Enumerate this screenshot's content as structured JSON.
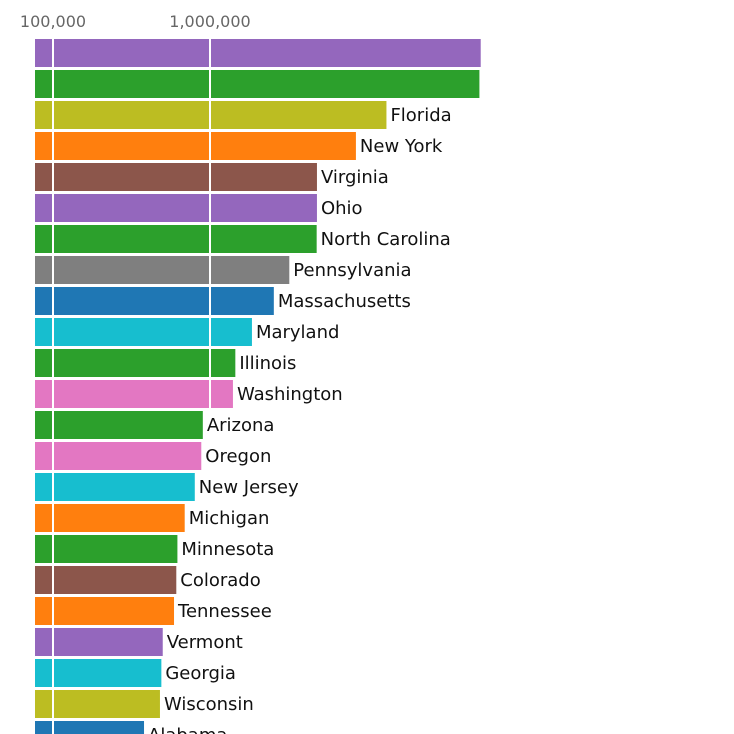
{
  "chart_data": {
    "type": "bar",
    "orientation": "horizontal",
    "x_scale": "log",
    "x_ticks": [
      {
        "value": 100000,
        "label": "100,000"
      },
      {
        "value": 1000000,
        "label": "1,000,000"
      }
    ],
    "grid": true,
    "colors": {
      "purple": "#9467bd",
      "green": "#2ca02c",
      "olive": "#bcbd22",
      "orange": "#ff7f0e",
      "brown": "#8c564b",
      "gray": "#7f7f7f",
      "blue": "#1f77b4",
      "cyan": "#17becf",
      "pink": "#e377c2"
    },
    "bars": [
      {
        "label": "",
        "value": 53000000,
        "color": "#9467bd"
      },
      {
        "label": "",
        "value": 52000000,
        "color": "#2ca02c"
      },
      {
        "label": "Florida",
        "value": 13300000,
        "color": "#bcbd22"
      },
      {
        "label": "New York",
        "value": 8500000,
        "color": "#ff7f0e"
      },
      {
        "label": "Virginia",
        "value": 4800000,
        "color": "#8c564b"
      },
      {
        "label": "Ohio",
        "value": 4800000,
        "color": "#9467bd"
      },
      {
        "label": "North Carolina",
        "value": 4780000,
        "color": "#2ca02c"
      },
      {
        "label": "Pennsylvania",
        "value": 3200000,
        "color": "#7f7f7f"
      },
      {
        "label": "Massachusetts",
        "value": 2550000,
        "color": "#1f77b4"
      },
      {
        "label": "Maryland",
        "value": 1850000,
        "color": "#17becf"
      },
      {
        "label": "Illinois",
        "value": 1450000,
        "color": "#2ca02c"
      },
      {
        "label": "Washington",
        "value": 1400000,
        "color": "#e377c2"
      },
      {
        "label": "Arizona",
        "value": 900000,
        "color": "#2ca02c"
      },
      {
        "label": "Oregon",
        "value": 880000,
        "color": "#e377c2"
      },
      {
        "label": "New Jersey",
        "value": 800000,
        "color": "#17becf"
      },
      {
        "label": "Michigan",
        "value": 690000,
        "color": "#ff7f0e"
      },
      {
        "label": "Minnesota",
        "value": 620000,
        "color": "#2ca02c"
      },
      {
        "label": "Colorado",
        "value": 610000,
        "color": "#8c564b"
      },
      {
        "label": "Tennessee",
        "value": 590000,
        "color": "#ff7f0e"
      },
      {
        "label": "Vermont",
        "value": 500000,
        "color": "#9467bd"
      },
      {
        "label": "Georgia",
        "value": 490000,
        "color": "#17becf"
      },
      {
        "label": "Wisconsin",
        "value": 480000,
        "color": "#bcbd22"
      },
      {
        "label": "Alabama",
        "value": 380000,
        "color": "#1f77b4"
      }
    ]
  }
}
